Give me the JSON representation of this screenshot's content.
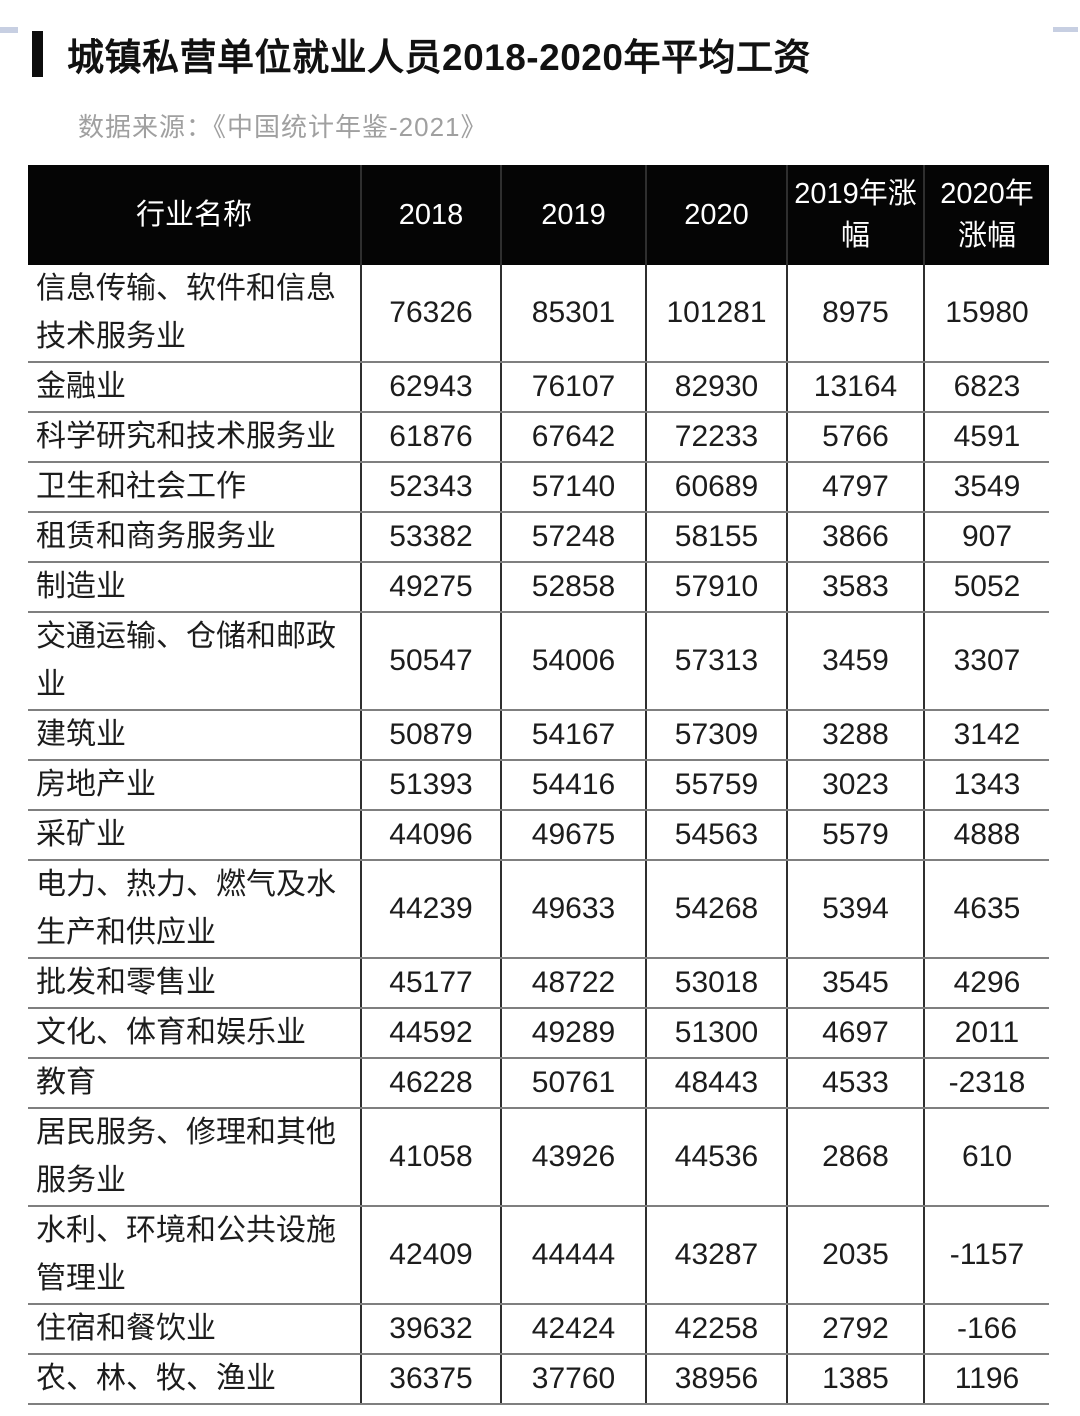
{
  "page": {
    "title": "城镇私营单位就业人员2018-2020年平均工资",
    "source": "数据来源：《中国统计年鉴-2021》"
  },
  "colors": {
    "header_bg": "#050505",
    "header_text": "#ffffff",
    "row_separator": "#7f7f7f",
    "column_separator": "#2f2f2f",
    "source_text": "#a0a0a0",
    "title_text": "#111111",
    "edge_artifact": "#c7cfe2"
  },
  "table": {
    "columns": [
      "行业名称",
      "2018",
      "2019",
      "2020",
      "2019年涨幅",
      "2020年涨幅"
    ],
    "rows": [
      [
        "信息传输、软件和信息技术服务业",
        "76326",
        "85301",
        "101281",
        "8975",
        "15980"
      ],
      [
        "金融业",
        "62943",
        "76107",
        "82930",
        "13164",
        "6823"
      ],
      [
        "科学研究和技术服务业",
        "61876",
        "67642",
        "72233",
        "5766",
        "4591"
      ],
      [
        "卫生和社会工作",
        "52343",
        "57140",
        "60689",
        "4797",
        "3549"
      ],
      [
        "租赁和商务服务业",
        "53382",
        "57248",
        "58155",
        "3866",
        "907"
      ],
      [
        "制造业",
        "49275",
        "52858",
        "57910",
        "3583",
        "5052"
      ],
      [
        "交通运输、仓储和邮政业",
        "50547",
        "54006",
        "57313",
        "3459",
        "3307"
      ],
      [
        "建筑业",
        "50879",
        "54167",
        "57309",
        "3288",
        "3142"
      ],
      [
        "房地产业",
        "51393",
        "54416",
        "55759",
        "3023",
        "1343"
      ],
      [
        "采矿业",
        "44096",
        "49675",
        "54563",
        "5579",
        "4888"
      ],
      [
        "电力、热力、燃气及水生产和供应业",
        "44239",
        "49633",
        "54268",
        "5394",
        "4635"
      ],
      [
        "批发和零售业",
        "45177",
        "48722",
        "53018",
        "3545",
        "4296"
      ],
      [
        "文化、体育和娱乐业",
        "44592",
        "49289",
        "51300",
        "4697",
        "2011"
      ],
      [
        "教育",
        "46228",
        "50761",
        "48443",
        "4533",
        "-2318"
      ],
      [
        "居民服务、修理和其他服务业",
        "41058",
        "43926",
        "44536",
        "2868",
        "610"
      ],
      [
        "水利、环境和公共设施管理业",
        "42409",
        "44444",
        "43287",
        "2035",
        "-1157"
      ],
      [
        "住宿和餐饮业",
        "39632",
        "42424",
        "42258",
        "2792",
        "-166"
      ],
      [
        "农、林、牧、渔业",
        "36375",
        "37760",
        "38956",
        "1385",
        "1196"
      ]
    ]
  }
}
